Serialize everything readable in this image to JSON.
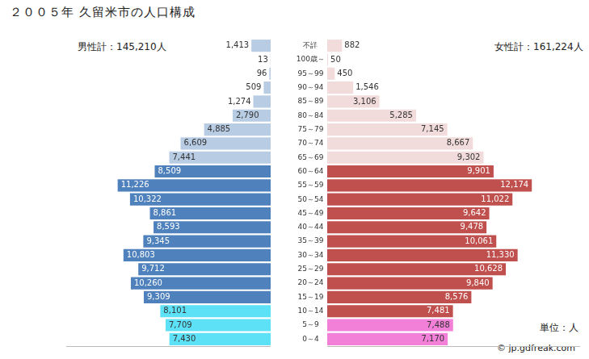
{
  "chart_data": {
    "type": "bar",
    "orientation": "horizontal",
    "title": "２００５年 久留米市の人口構成",
    "categories": [
      "不詳",
      "100歳～",
      "95～99",
      "90～94",
      "85～89",
      "80～84",
      "75～79",
      "70～74",
      "65～69",
      "60～64",
      "55～59",
      "50～54",
      "45～49",
      "40～44",
      "35～39",
      "30～34",
      "25～29",
      "20～24",
      "15～19",
      "10～14",
      "5～9",
      "0～4"
    ],
    "series": [
      {
        "name": "男性計：145,210人",
        "values": [
          1413,
          13,
          96,
          509,
          1274,
          2790,
          4885,
          6609,
          7441,
          8509,
          11226,
          10322,
          8861,
          8593,
          9345,
          10803,
          9712,
          10260,
          9309,
          8101,
          7709,
          7430
        ],
        "value_labels": [
          "1,413",
          "13",
          "96",
          "509",
          "1,274",
          "2,790",
          "4,885",
          "6,609",
          "7,441",
          "8,509",
          "11,226",
          "10,322",
          "8,861",
          "8,593",
          "9,345",
          "10,803",
          "9,712",
          "10,260",
          "9,309",
          "8,101",
          "7,709",
          "7,430"
        ],
        "colors": [
          "#b8cce4",
          "#b8cce4",
          "#b8cce4",
          "#b8cce4",
          "#b8cce4",
          "#b8cce4",
          "#b8cce4",
          "#b8cce4",
          "#b8cce4",
          "#4f81bd",
          "#4f81bd",
          "#4f81bd",
          "#4f81bd",
          "#4f81bd",
          "#4f81bd",
          "#4f81bd",
          "#4f81bd",
          "#4f81bd",
          "#4f81bd",
          "#5ce1f7",
          "#5ce1f7",
          "#5ce1f7"
        ]
      },
      {
        "name": "女性計：161,224人",
        "values": [
          882,
          50,
          450,
          1546,
          3106,
          5285,
          7145,
          8667,
          9302,
          9901,
          12174,
          11022,
          9642,
          9478,
          10061,
          11330,
          10628,
          9840,
          8576,
          7481,
          7488,
          7170
        ],
        "value_labels": [
          "882",
          "50",
          "450",
          "1,546",
          "3,106",
          "5,285",
          "7,145",
          "8,667",
          "9,302",
          "9,901",
          "12,174",
          "11,022",
          "9,642",
          "9,478",
          "10,061",
          "11,330",
          "10,628",
          "9,840",
          "8,576",
          "7,481",
          "7,488",
          "7,170"
        ],
        "colors": [
          "#f2dcdb",
          "#f2dcdb",
          "#f2dcdb",
          "#f2dcdb",
          "#f2dcdb",
          "#f2dcdb",
          "#f2dcdb",
          "#f2dcdb",
          "#f2dcdb",
          "#c0504d",
          "#c0504d",
          "#c0504d",
          "#c0504d",
          "#c0504d",
          "#c0504d",
          "#c0504d",
          "#c0504d",
          "#c0504d",
          "#c0504d",
          "#c0504d",
          "#f27fd8",
          "#f27fd8"
        ]
      }
    ],
    "xlim": [
      0,
      15000
    ],
    "grid": false,
    "data_labels": true,
    "tick_labels": "y",
    "annotations": [
      "単位：人",
      "© jp.gdfreak.com"
    ]
  }
}
